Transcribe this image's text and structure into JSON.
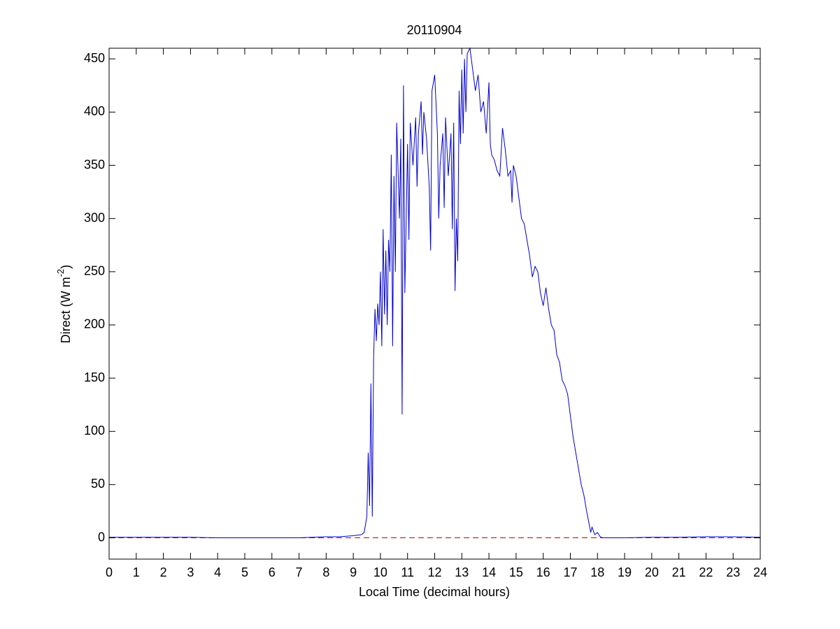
{
  "chart_data": {
    "type": "line",
    "title": "20110904",
    "xlabel": "Local Time (decimal hours)",
    "ylabel_parts": [
      "Direct (W m",
      "-2",
      ")"
    ],
    "xlim": [
      0,
      24
    ],
    "xticks": [
      0,
      1,
      2,
      3,
      4,
      5,
      6,
      7,
      8,
      9,
      10,
      11,
      12,
      13,
      14,
      15,
      16,
      17,
      18,
      19,
      20,
      21,
      22,
      23,
      24
    ],
    "ylim": [
      -20,
      460
    ],
    "yticks": [
      0,
      50,
      100,
      150,
      200,
      250,
      300,
      350,
      400,
      450
    ],
    "grid": false,
    "reference_line": {
      "y": 0,
      "color": "#cc0000",
      "style": "dashed"
    },
    "series": [
      {
        "color": "#0000cc",
        "x": [
          0,
          1,
          2,
          3,
          4,
          5,
          6,
          7,
          8,
          8.5,
          9,
          9.3,
          9.4,
          9.5,
          9.55,
          9.6,
          9.65,
          9.7,
          9.75,
          9.8,
          9.85,
          9.9,
          9.95,
          10.0,
          10.05,
          10.1,
          10.15,
          10.2,
          10.25,
          10.3,
          10.35,
          10.4,
          10.45,
          10.5,
          10.55,
          10.6,
          10.7,
          10.75,
          10.8,
          10.85,
          10.9,
          11.0,
          11.05,
          11.1,
          11.2,
          11.3,
          11.35,
          11.4,
          11.5,
          11.55,
          11.6,
          11.7,
          11.8,
          11.85,
          11.9,
          12.0,
          12.1,
          12.15,
          12.2,
          12.3,
          12.35,
          12.4,
          12.5,
          12.6,
          12.65,
          12.7,
          12.75,
          12.8,
          12.85,
          12.9,
          12.95,
          13.0,
          13.05,
          13.1,
          13.15,
          13.2,
          13.3,
          13.4,
          13.5,
          13.6,
          13.7,
          13.8,
          13.9,
          14.0,
          14.05,
          14.1,
          14.2,
          14.3,
          14.4,
          14.5,
          14.6,
          14.7,
          14.8,
          14.85,
          14.9,
          15.0,
          15.1,
          15.2,
          15.3,
          15.4,
          15.5,
          15.6,
          15.7,
          15.8,
          15.9,
          16.0,
          16.1,
          16.2,
          16.3,
          16.4,
          16.5,
          16.6,
          16.7,
          16.8,
          16.9,
          17.0,
          17.1,
          17.2,
          17.3,
          17.4,
          17.5,
          17.6,
          17.7,
          17.75,
          17.8,
          17.9,
          18.0,
          18.1,
          18.2,
          18.5,
          19,
          20,
          21,
          22,
          23,
          24
        ],
        "values": [
          0.5,
          0.5,
          0.5,
          0.5,
          0,
          0,
          0,
          0,
          1,
          1,
          2,
          3,
          5,
          20,
          80,
          30,
          145,
          20,
          170,
          215,
          185,
          220,
          200,
          250,
          180,
          290,
          210,
          270,
          200,
          280,
          250,
          360,
          180,
          340,
          250,
          390,
          300,
          375,
          116,
          425,
          230,
          370,
          280,
          390,
          350,
          395,
          330,
          380,
          410,
          360,
          400,
          375,
          330,
          270,
          420,
          435,
          380,
          300,
          350,
          380,
          310,
          395,
          340,
          380,
          290,
          390,
          232,
          300,
          260,
          420,
          370,
          440,
          380,
          450,
          400,
          455,
          460,
          440,
          420,
          435,
          400,
          410,
          380,
          428,
          370,
          360,
          355,
          345,
          340,
          385,
          365,
          340,
          345,
          315,
          350,
          340,
          320,
          300,
          295,
          280,
          265,
          245,
          255,
          250,
          230,
          218,
          235,
          215,
          200,
          195,
          172,
          165,
          148,
          143,
          135,
          115,
          95,
          80,
          65,
          50,
          40,
          25,
          12,
          5,
          10,
          3,
          5,
          1,
          0,
          0,
          0,
          0.5,
          0.5,
          1,
          1,
          0.5
        ]
      }
    ]
  }
}
